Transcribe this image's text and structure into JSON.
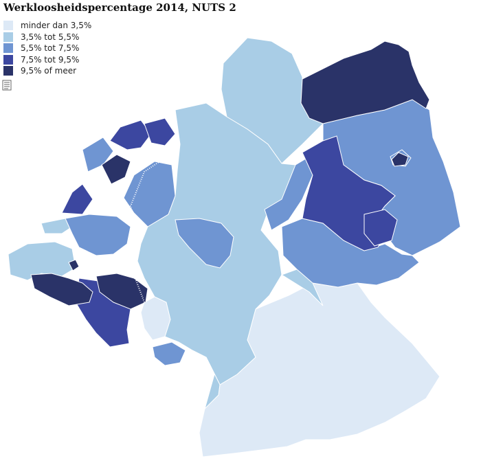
{
  "title": "Werkloosheidspercentage 2014, NUTS 2",
  "legend": [
    {
      "label": "minder dan 3,5%",
      "color": "#dde9f6"
    },
    {
      "label": "3,5% tot 5,5%",
      "color": "#a9cde6"
    },
    {
      "label": "5,5% tot 7,5%",
      "color": "#6f95d2"
    },
    {
      "label": "7,5% tot 9,5%",
      "color": "#3c47a0"
    },
    {
      "label": "9,5% of meer",
      "color": "#2a3368"
    }
  ],
  "icons": {
    "export": "document-icon"
  },
  "colors": {
    "border": "#ffffff",
    "background": "#ffffff"
  }
}
